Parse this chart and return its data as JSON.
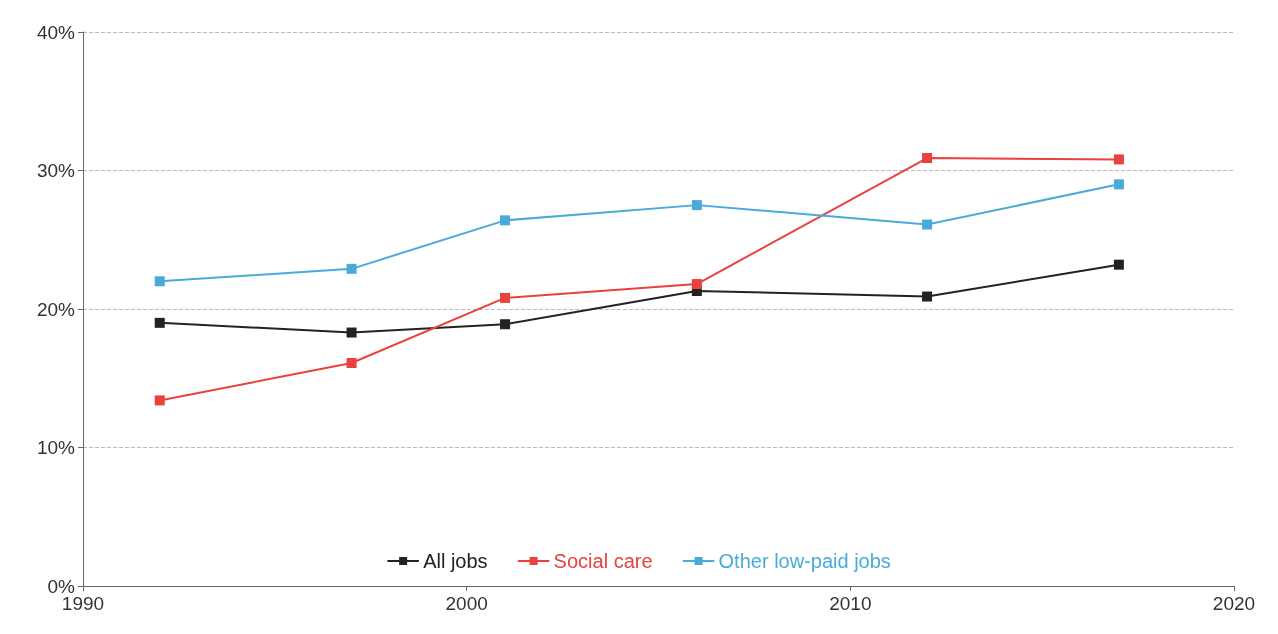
{
  "chart_data": {
    "type": "line",
    "x": [
      1992,
      1997,
      2001,
      2006,
      2012,
      2017
    ],
    "series": [
      {
        "name": "All jobs",
        "color": "#222222",
        "values": [
          19.0,
          18.3,
          18.9,
          21.3,
          20.9,
          23.2
        ]
      },
      {
        "name": "Social care",
        "color": "#e8413e",
        "values": [
          13.4,
          16.1,
          20.8,
          21.8,
          30.9,
          30.8
        ]
      },
      {
        "name": "Other low-paid jobs",
        "color": "#4aaad8",
        "values": [
          22.0,
          22.9,
          26.4,
          27.5,
          26.1,
          29.0
        ]
      }
    ],
    "xlim": [
      1990,
      2020
    ],
    "xticks": [
      1990,
      2000,
      2010,
      2020
    ],
    "ylim": [
      0,
      40
    ],
    "yticks": [
      {
        "value": 0,
        "label": "0%"
      },
      {
        "value": 10,
        "label": "10%"
      },
      {
        "value": 20,
        "label": "20%"
      },
      {
        "value": 30,
        "label": "30%"
      },
      {
        "value": 40,
        "label": "40%"
      }
    ],
    "grid": "y",
    "legend": "bottom",
    "marker": "square",
    "line_style": "solid"
  }
}
